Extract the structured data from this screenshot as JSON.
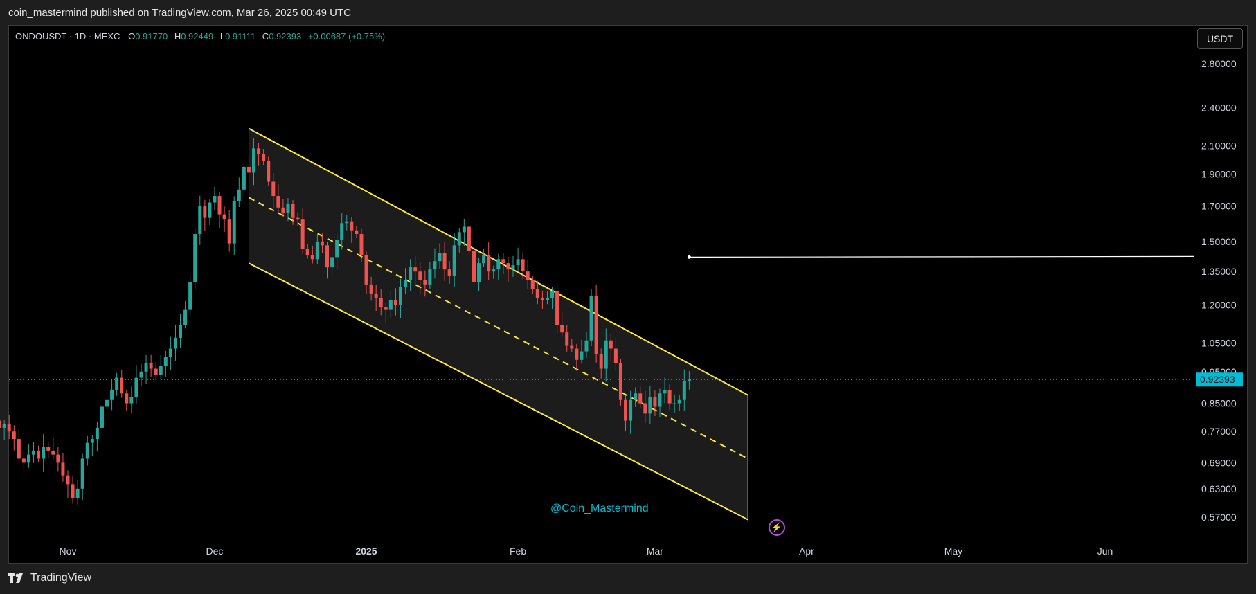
{
  "header": {
    "text": "coin_mastermind published on TradingView.com, Mar 26, 2025 00:49 UTC"
  },
  "footer": {
    "brand": "TradingView"
  },
  "legend": {
    "symbol": "ONDOUSDT · 1D · MEXC",
    "o_label": "O",
    "o_value": "0.91770",
    "h_label": "H",
    "h_value": "0.92449",
    "l_label": "L",
    "l_value": "0.91111",
    "c_label": "C",
    "c_value": "0.92393",
    "change": "+0.00687 (+0.75%)"
  },
  "currency_button": "USDT",
  "watermark": "@Coin_Mastermind",
  "colors": {
    "up": "#26a69a",
    "down": "#ef5350",
    "channel": "#ffeb3b",
    "price_tag": "#00bcd4",
    "watermark": "#00bcd4",
    "ray": "#ffffff",
    "lightning": "#b84dd6"
  },
  "chart_data": {
    "type": "candlestick",
    "scale": "log",
    "y_ticks": [
      "2.80000",
      "2.40000",
      "2.10000",
      "1.90000",
      "1.70000",
      "1.50000",
      "1.35000",
      "1.20000",
      "1.05000",
      "0.95000",
      "0.85000",
      "0.77000",
      "0.69000",
      "0.63000",
      "0.57000"
    ],
    "x_ticks": [
      {
        "label": "Nov",
        "date": "2024-11-01",
        "bold": false
      },
      {
        "label": "Dec",
        "date": "2024-12-01",
        "bold": false
      },
      {
        "label": "2025",
        "date": "2025-01-01",
        "bold": true
      },
      {
        "label": "Feb",
        "date": "2025-02-01",
        "bold": false
      },
      {
        "label": "Mar",
        "date": "2025-03-01",
        "bold": false
      },
      {
        "label": "Apr",
        "date": "2025-04-01",
        "bold": false
      },
      {
        "label": "May",
        "date": "2025-05-01",
        "bold": false
      },
      {
        "label": "Jun",
        "date": "2025-06-01",
        "bold": false
      }
    ],
    "last_price": 0.92393,
    "last_price_label": "0.92393",
    "candles_start": "2024-10-16",
    "closes": [
      0.84,
      0.8,
      0.78,
      0.79,
      0.77,
      0.75,
      0.7,
      0.69,
      0.71,
      0.72,
      0.7,
      0.73,
      0.72,
      0.71,
      0.69,
      0.66,
      0.64,
      0.61,
      0.63,
      0.7,
      0.74,
      0.75,
      0.78,
      0.84,
      0.86,
      0.89,
      0.93,
      0.88,
      0.85,
      0.87,
      0.93,
      0.95,
      0.98,
      0.96,
      0.94,
      0.97,
      1.0,
      1.03,
      1.07,
      1.12,
      1.18,
      1.3,
      1.54,
      1.7,
      1.63,
      1.72,
      1.76,
      1.65,
      1.62,
      1.49,
      1.73,
      1.8,
      1.95,
      1.91,
      2.08,
      2.04,
      1.99,
      1.85,
      1.76,
      1.69,
      1.66,
      1.71,
      1.63,
      1.62,
      1.46,
      1.43,
      1.41,
      1.5,
      1.48,
      1.37,
      1.42,
      1.51,
      1.6,
      1.61,
      1.56,
      1.54,
      1.43,
      1.29,
      1.25,
      1.23,
      1.19,
      1.18,
      1.22,
      1.2,
      1.28,
      1.31,
      1.37,
      1.35,
      1.31,
      1.29,
      1.36,
      1.4,
      1.44,
      1.36,
      1.33,
      1.48,
      1.55,
      1.58,
      1.45,
      1.3,
      1.39,
      1.43,
      1.35,
      1.36,
      1.41,
      1.39,
      1.36,
      1.38,
      1.41,
      1.35,
      1.31,
      1.27,
      1.23,
      1.22,
      1.23,
      1.26,
      1.12,
      1.09,
      1.04,
      1.03,
      0.99,
      1.02,
      1.06,
      1.24,
      1.01,
      0.96,
      1.06,
      1.03,
      0.98,
      0.86,
      0.8,
      0.86,
      0.88,
      0.85,
      0.82,
      0.87,
      0.84,
      0.88,
      0.89,
      0.85,
      0.85,
      0.86,
      0.92,
      0.92393
    ],
    "channel": {
      "upper": [
        {
          "date": "2024-12-08",
          "price": 2.23
        },
        {
          "date": "2025-03-20",
          "price": 0.875
        }
      ],
      "mid": [
        {
          "date": "2024-12-08",
          "price": 1.75
        },
        {
          "date": "2025-03-20",
          "price": 0.7
        }
      ],
      "lower": [
        {
          "date": "2024-12-08",
          "price": 1.39
        },
        {
          "date": "2025-03-20",
          "price": 0.565
        }
      ]
    },
    "horizontal_ray": {
      "start_date": "2025-03-08",
      "price": 1.42
    }
  }
}
